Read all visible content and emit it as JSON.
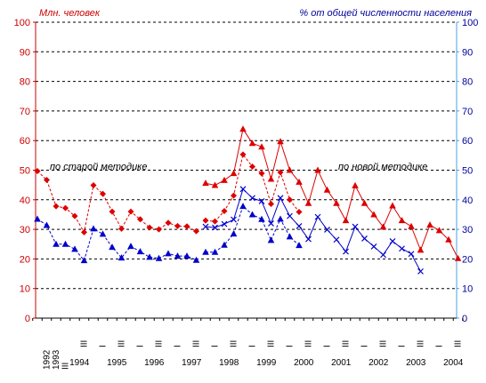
{
  "chart_data": {
    "type": "line",
    "left_axis": {
      "title": "Млн. человек",
      "min": 0,
      "max": 100,
      "step": 10,
      "color": "#cc0000"
    },
    "right_axis": {
      "title": "% от общей численности населения",
      "min": 0,
      "max": 100,
      "step": 10,
      "color": "#000099"
    },
    "grid": true,
    "x_labels": [
      {
        "text": "1992",
        "x": 1,
        "rotated": true
      },
      {
        "text": "1993",
        "x": 2,
        "rotated": true
      },
      {
        "text": "III",
        "x": 3,
        "rotated": true
      },
      {
        "text": "1994",
        "x": 4.5,
        "rotated": false
      },
      {
        "text": "1995",
        "x": 8.5,
        "rotated": false
      },
      {
        "text": "1996",
        "x": 12.5,
        "rotated": false
      },
      {
        "text": "1997",
        "x": 16.5,
        "rotated": false
      },
      {
        "text": "1998",
        "x": 20.5,
        "rotated": false
      },
      {
        "text": "1999",
        "x": 24.5,
        "rotated": false
      },
      {
        "text": "2000",
        "x": 28.5,
        "rotated": false
      },
      {
        "text": "2001",
        "x": 32.5,
        "rotated": false
      },
      {
        "text": "2002",
        "x": 36.5,
        "rotated": false
      },
      {
        "text": "2003",
        "x": 40.5,
        "rotated": false
      },
      {
        "text": "2004",
        "x": 44.5,
        "rotated": false
      }
    ],
    "x_roman": [
      {
        "text": "I",
        "x": 3
      },
      {
        "text": "III",
        "x": 5
      },
      {
        "text": "I",
        "x": 7
      },
      {
        "text": "III",
        "x": 9
      },
      {
        "text": "I",
        "x": 11
      },
      {
        "text": "III",
        "x": 13
      },
      {
        "text": "I",
        "x": 15
      },
      {
        "text": "III",
        "x": 17
      },
      {
        "text": "I",
        "x": 19
      },
      {
        "text": "III",
        "x": 21
      },
      {
        "text": "I",
        "x": 23
      },
      {
        "text": "III",
        "x": 25
      },
      {
        "text": "I",
        "x": 27
      },
      {
        "text": "III",
        "x": 29
      },
      {
        "text": "I",
        "x": 31
      },
      {
        "text": "III",
        "x": 33
      },
      {
        "text": "I",
        "x": 35
      },
      {
        "text": "III",
        "x": 37
      },
      {
        "text": "I",
        "x": 39
      },
      {
        "text": "III",
        "x": 41
      },
      {
        "text": "I",
        "x": 43
      },
      {
        "text": "III",
        "x": 45
      }
    ],
    "annotations": {
      "old_method": "по старой методике",
      "new_method": "по новой методике"
    },
    "series": [
      {
        "key": "mln_old",
        "style": "dashed",
        "marker": "diamond",
        "color": "#dd0000",
        "points": [
          [
            0,
            49.7
          ],
          [
            1,
            46.7
          ],
          [
            2,
            37.8
          ],
          [
            3,
            37.2
          ],
          [
            4,
            34.5
          ],
          [
            5,
            29.0
          ],
          [
            6,
            44.9
          ],
          [
            7,
            42.0
          ],
          [
            8,
            36.0
          ],
          [
            9,
            30.2
          ],
          [
            10,
            36.0
          ],
          [
            11,
            33.4
          ],
          [
            12,
            30.6
          ],
          [
            13,
            30.0
          ],
          [
            14,
            32.2
          ],
          [
            15,
            31.1
          ],
          [
            16,
            31.0
          ],
          [
            17,
            29.4
          ]
        ]
      },
      {
        "key": "mln_old_1998",
        "style": "dashed",
        "marker": "diamond",
        "color": "#dd0000",
        "points": [
          [
            18,
            33.0
          ],
          [
            19,
            32.7
          ],
          [
            20,
            36.2
          ],
          [
            21,
            41.4
          ],
          [
            22,
            55.3
          ],
          [
            23,
            51.2
          ],
          [
            24,
            48.9
          ],
          [
            25,
            38.6
          ],
          [
            26,
            49.3
          ],
          [
            27,
            40.0
          ],
          [
            28,
            35.9
          ]
        ]
      },
      {
        "key": "mln_new",
        "style": "solid",
        "marker": "triangle",
        "color": "#dd0000",
        "points": [
          [
            18,
            45.6
          ],
          [
            19,
            44.9
          ],
          [
            20,
            46.6
          ],
          [
            21,
            48.9
          ],
          [
            22,
            63.9
          ],
          [
            23,
            59.1
          ],
          [
            24,
            57.9
          ],
          [
            25,
            47.0
          ],
          [
            26,
            59.7
          ],
          [
            27,
            50.0
          ],
          [
            28,
            46.0
          ],
          [
            29,
            38.8
          ],
          [
            30,
            50.0
          ],
          [
            31,
            43.3
          ],
          [
            32,
            38.8
          ],
          [
            33,
            33.0
          ],
          [
            34,
            44.8
          ],
          [
            35,
            38.8
          ],
          [
            36,
            35.0
          ],
          [
            37,
            30.8
          ],
          [
            38,
            38.0
          ],
          [
            39,
            33.0
          ],
          [
            40,
            31.0
          ],
          [
            41,
            23.0
          ],
          [
            42,
            31.5
          ],
          [
            43,
            29.6
          ],
          [
            44,
            26.5
          ],
          [
            45,
            20.2
          ]
        ]
      },
      {
        "key": "pct_old",
        "style": "dashed",
        "marker": "triangle",
        "color": "#0000cc",
        "points": [
          [
            0,
            33.5
          ],
          [
            1,
            31.4
          ],
          [
            2,
            25.0
          ],
          [
            3,
            25.0
          ],
          [
            4,
            23.3
          ],
          [
            5,
            19.5
          ],
          [
            6,
            30.2
          ],
          [
            7,
            28.4
          ],
          [
            8,
            24.0
          ],
          [
            9,
            20.4
          ],
          [
            10,
            24.3
          ],
          [
            11,
            22.5
          ],
          [
            12,
            20.6
          ],
          [
            13,
            20.2
          ],
          [
            14,
            21.8
          ],
          [
            15,
            21.0
          ],
          [
            16,
            21.0
          ],
          [
            17,
            19.6
          ]
        ]
      },
      {
        "key": "pct_old_1998",
        "style": "dashed",
        "marker": "triangle",
        "color": "#0000cc",
        "points": [
          [
            18,
            22.3
          ],
          [
            19,
            22.3
          ],
          [
            20,
            24.7
          ],
          [
            21,
            28.5
          ],
          [
            22,
            37.8
          ],
          [
            23,
            35.0
          ],
          [
            24,
            33.4
          ],
          [
            25,
            26.3
          ],
          [
            26,
            33.5
          ],
          [
            27,
            27.5
          ],
          [
            28,
            24.6
          ]
        ]
      },
      {
        "key": "pct_new",
        "style": "solid",
        "marker": "cross",
        "color": "#0000cc",
        "points": [
          [
            18,
            30.9
          ],
          [
            19,
            30.6
          ],
          [
            20,
            31.8
          ],
          [
            21,
            33.3
          ],
          [
            22,
            43.6
          ],
          [
            23,
            40.6
          ],
          [
            24,
            39.5
          ],
          [
            25,
            32.0
          ],
          [
            26,
            40.6
          ],
          [
            27,
            34.5
          ],
          [
            28,
            31.1
          ],
          [
            29,
            26.7
          ],
          [
            30,
            34.2
          ],
          [
            31,
            29.9
          ],
          [
            32,
            26.5
          ],
          [
            33,
            22.5
          ],
          [
            34,
            30.9
          ],
          [
            35,
            26.9
          ],
          [
            36,
            24.2
          ],
          [
            37,
            21.4
          ],
          [
            38,
            26.0
          ],
          [
            39,
            23.5
          ],
          [
            40,
            21.7
          ],
          [
            41,
            15.8
          ]
        ]
      }
    ]
  }
}
